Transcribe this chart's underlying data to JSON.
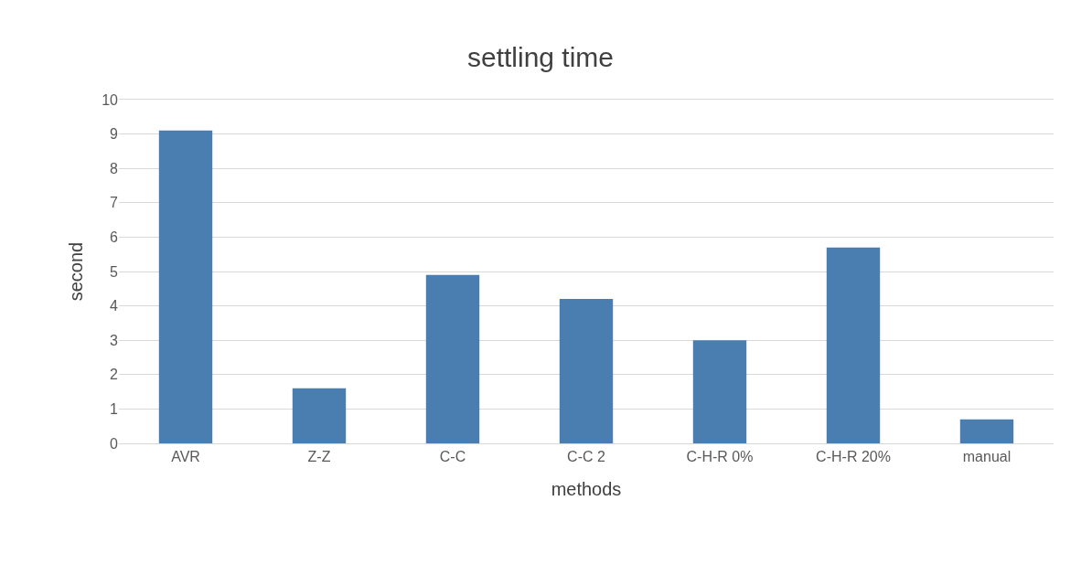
{
  "chart_data": {
    "type": "bar",
    "title": "settling time",
    "xlabel": "methods",
    "ylabel": "second",
    "categories": [
      "AVR",
      "Z-Z",
      "C-C",
      "C-C 2",
      "C-H-R 0%",
      "C-H-R 20%",
      "manual"
    ],
    "values": [
      9.1,
      1.6,
      4.9,
      4.2,
      3.0,
      5.7,
      0.7
    ],
    "color": "#4a7eb0",
    "ylim": [
      0,
      10
    ],
    "yticks": [
      0,
      1,
      2,
      3,
      4,
      5,
      6,
      7,
      8,
      9,
      10
    ],
    "grid": "y"
  }
}
